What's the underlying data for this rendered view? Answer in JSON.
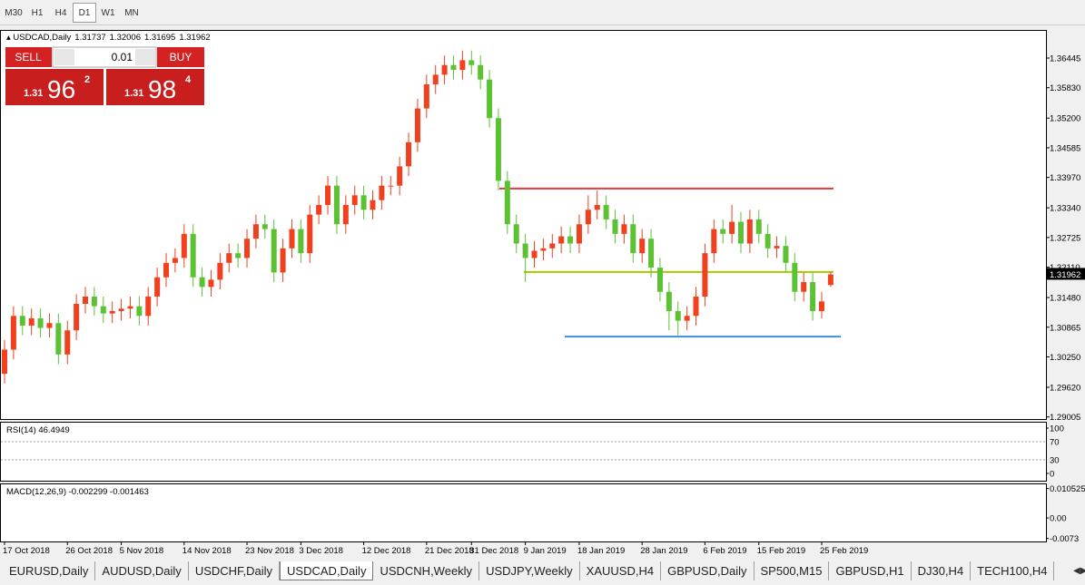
{
  "toolbar": {
    "timeframes": [
      "M30",
      "H1",
      "H4",
      "D1",
      "W1",
      "MN"
    ],
    "active": 3
  },
  "header": {
    "symbol": "USDCAD,Daily",
    "open": 1.31737,
    "high": 1.32006,
    "low": 1.31695,
    "close": 1.31962
  },
  "trade_panel": {
    "sell": "SELL",
    "buy": "BUY",
    "lot": "0.01",
    "bid": {
      "big": "1.31",
      "main": "96",
      "small": "2"
    },
    "ask": {
      "big": "1.31",
      "main": "98",
      "small": "4"
    }
  },
  "chart_data": {
    "type": "candlestick",
    "categories": [
      "17 Oct 2018",
      null,
      null,
      null,
      null,
      null,
      null,
      "26 Oct 2018",
      null,
      null,
      null,
      null,
      null,
      "5 Nov 2018",
      null,
      null,
      null,
      null,
      null,
      null,
      "14 Nov 2018",
      null,
      null,
      null,
      null,
      null,
      null,
      "23 Nov 2018",
      null,
      null,
      null,
      null,
      null,
      "3 Dec 2018",
      null,
      null,
      null,
      null,
      null,
      null,
      "12 Dec 2018",
      null,
      null,
      null,
      null,
      null,
      null,
      "21 Dec 2018",
      null,
      null,
      null,
      null,
      "31 Dec 2018",
      null,
      null,
      null,
      null,
      null,
      "9 Jan 2019",
      null,
      null,
      null,
      null,
      null,
      "18 Jan 2019",
      null,
      null,
      null,
      null,
      null,
      null,
      "28 Jan 2019",
      null,
      null,
      null,
      null,
      null,
      null,
      "6 Feb 2019",
      null,
      null,
      null,
      null,
      null,
      "15 Feb 2019",
      null,
      null,
      null,
      null,
      null,
      null,
      "25 Feb 2019",
      null
    ],
    "open": [
      1.299,
      1.304,
      1.311,
      1.309,
      1.3105,
      1.3085,
      1.3095,
      1.303,
      1.308,
      1.3135,
      1.315,
      1.313,
      1.3115,
      1.312,
      1.3125,
      1.313,
      1.311,
      1.315,
      1.319,
      1.322,
      1.323,
      1.328,
      1.319,
      1.317,
      1.3185,
      1.322,
      1.324,
      1.323,
      1.327,
      1.33,
      1.329,
      1.32,
      1.325,
      1.329,
      1.324,
      1.332,
      1.334,
      1.338,
      1.33,
      1.334,
      1.336,
      1.333,
      1.335,
      1.338,
      1.338,
      1.342,
      1.347,
      1.354,
      1.359,
      1.361,
      1.363,
      1.362,
      1.364,
      1.363,
      1.36,
      1.352,
      1.339,
      1.33,
      1.326,
      1.323,
      1.3245,
      1.325,
      1.326,
      1.3275,
      1.326,
      1.33,
      1.333,
      1.334,
      1.331,
      1.328,
      1.33,
      1.324,
      1.327,
      1.321,
      1.316,
      1.312,
      1.31,
      1.311,
      1.315,
      1.324,
      1.329,
      1.328,
      1.3305,
      1.326,
      1.331,
      1.328,
      1.325,
      1.3255,
      1.322,
      1.316,
      1.318,
      1.312,
      1.3174
    ],
    "high": [
      1.306,
      1.313,
      1.313,
      1.3125,
      1.3125,
      1.3115,
      1.3115,
      1.31,
      1.3155,
      1.317,
      1.317,
      1.315,
      1.314,
      1.3145,
      1.315,
      1.315,
      1.317,
      1.321,
      1.324,
      1.325,
      1.33,
      1.33,
      1.321,
      1.3205,
      1.324,
      1.326,
      1.326,
      1.329,
      1.332,
      1.332,
      1.331,
      1.327,
      1.331,
      1.331,
      1.334,
      1.336,
      1.34,
      1.34,
      1.336,
      1.338,
      1.338,
      1.337,
      1.34,
      1.34,
      1.344,
      1.349,
      1.356,
      1.361,
      1.363,
      1.365,
      1.365,
      1.366,
      1.366,
      1.365,
      1.362,
      1.354,
      1.341,
      1.332,
      1.328,
      1.3265,
      1.327,
      1.328,
      1.3295,
      1.3295,
      1.332,
      1.336,
      1.337,
      1.336,
      1.333,
      1.332,
      1.332,
      1.329,
      1.329,
      1.323,
      1.318,
      1.314,
      1.313,
      1.317,
      1.326,
      1.331,
      1.331,
      1.334,
      1.3325,
      1.333,
      1.333,
      1.33,
      1.3275,
      1.3275,
      1.324,
      1.32,
      1.32,
      1.316,
      1.3201
    ],
    "low": [
      1.297,
      1.302,
      1.307,
      1.307,
      1.3065,
      1.3065,
      1.301,
      1.301,
      1.306,
      1.3115,
      1.311,
      1.3095,
      1.3095,
      1.31,
      1.3105,
      1.309,
      1.309,
      1.313,
      1.317,
      1.32,
      1.321,
      1.317,
      1.315,
      1.315,
      1.3165,
      1.32,
      1.321,
      1.321,
      1.325,
      1.327,
      1.318,
      1.318,
      1.323,
      1.322,
      1.322,
      1.33,
      1.332,
      1.328,
      1.328,
      1.332,
      1.331,
      1.331,
      1.333,
      1.336,
      1.336,
      1.34,
      1.345,
      1.352,
      1.357,
      1.359,
      1.36,
      1.36,
      1.361,
      1.358,
      1.35,
      1.337,
      1.328,
      1.324,
      1.318,
      1.321,
      1.3225,
      1.323,
      1.324,
      1.324,
      1.324,
      1.328,
      1.331,
      1.329,
      1.326,
      1.326,
      1.322,
      1.322,
      1.319,
      1.314,
      1.308,
      1.307,
      1.308,
      1.309,
      1.313,
      1.322,
      1.326,
      1.326,
      1.324,
      1.324,
      1.326,
      1.323,
      1.323,
      1.32,
      1.314,
      1.314,
      1.31,
      1.3105,
      1.317
    ],
    "close": [
      1.304,
      1.311,
      1.309,
      1.3105,
      1.3085,
      1.3095,
      1.303,
      1.308,
      1.3135,
      1.315,
      1.313,
      1.3115,
      1.312,
      1.3125,
      1.313,
      1.311,
      1.315,
      1.319,
      1.322,
      1.323,
      1.328,
      1.319,
      1.317,
      1.3185,
      1.322,
      1.324,
      1.323,
      1.327,
      1.33,
      1.329,
      1.32,
      1.325,
      1.329,
      1.324,
      1.332,
      1.334,
      1.338,
      1.33,
      1.334,
      1.336,
      1.333,
      1.335,
      1.338,
      1.338,
      1.342,
      1.347,
      1.354,
      1.359,
      1.361,
      1.363,
      1.362,
      1.364,
      1.363,
      1.36,
      1.352,
      1.339,
      1.33,
      1.326,
      1.323,
      1.3245,
      1.325,
      1.326,
      1.3275,
      1.326,
      1.33,
      1.333,
      1.334,
      1.331,
      1.328,
      1.33,
      1.324,
      1.327,
      1.321,
      1.316,
      1.312,
      1.31,
      1.311,
      1.315,
      1.324,
      1.329,
      1.328,
      1.3305,
      1.326,
      1.331,
      1.328,
      1.325,
      1.3255,
      1.322,
      1.316,
      1.318,
      1.312,
      1.314,
      1.3196
    ],
    "up_color": "#f0401e",
    "down_color": "#5cc234",
    "ylim": [
      1.28962,
      1.37028
    ],
    "yticks": [
      1.36445,
      {
        "value": 1.3583,
        "label": "1.35830"
      },
      {
        "value": 1.352,
        "label": "1.35200"
      },
      1.34585,
      {
        "value": 1.3397,
        "label": "1.33970"
      },
      {
        "value": 1.3334,
        "label": "1.33340"
      },
      1.32725,
      {
        "value": 1.3211,
        "label": "1.32110"
      },
      {
        "value": 1.3148,
        "label": "1.31480"
      },
      1.30865,
      {
        "value": 1.3025,
        "label": "1.30250"
      },
      {
        "value": 1.2962,
        "label": "1.29620"
      },
      1.29005
    ],
    "current_price": 1.31962,
    "levels": [
      {
        "price": 1.3374,
        "color": "#e03c3c"
      },
      {
        "price": 1.3201,
        "color": "#a8c800"
      },
      {
        "price": 1.3067,
        "color": "#3c8fdc"
      }
    ]
  },
  "rsi": {
    "label": "RSI(14) 46.4949",
    "ylim": [
      0,
      100
    ],
    "yticks": [
      100,
      70,
      30,
      0
    ]
  },
  "macd": {
    "label": "MACD(12,26,9) -0.002299 -0.001463",
    "ylim": [
      -0.00855,
      0.01217
    ],
    "yticks": [
      0.010525,
      {
        "value": 0,
        "label": "0.00"
      },
      -0.0073
    ]
  },
  "tabs": {
    "items": [
      "EURUSD,Daily",
      "AUDUSD,Daily",
      "USDCHF,Daily",
      "USDCAD,Daily",
      "USDCNH,Weekly",
      "USDJPY,Weekly",
      "XAUUSD,H4",
      "GBPUSD,Daily",
      "SP500,M15",
      "GBPUSD,H1",
      "DJ30,H4",
      "TECH100,H4"
    ],
    "active": 3
  }
}
